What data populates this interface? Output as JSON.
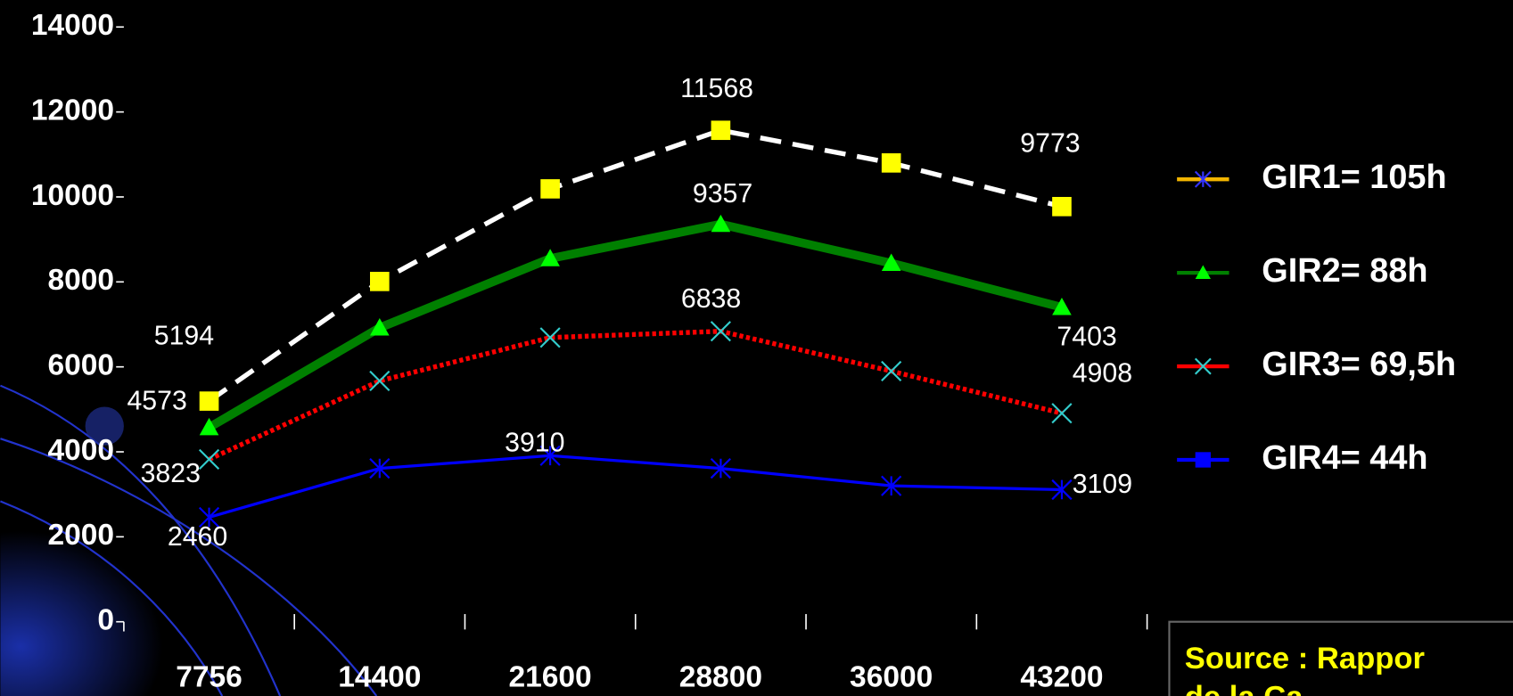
{
  "chart_data": {
    "type": "line",
    "categories": [
      "7756",
      "14400",
      "21600",
      "28800",
      "36000",
      "43200"
    ],
    "ylim": [
      0,
      14000
    ],
    "yticks": [
      0,
      2000,
      4000,
      6000,
      8000,
      10000,
      12000,
      14000
    ],
    "series": [
      {
        "name": "GIR1= 105h",
        "color": "#ffffff",
        "dash": "22 12",
        "width": 5,
        "marker": "square",
        "marker_color": "#ffff00",
        "legend_color": "#f2b400",
        "legend_marker": "star",
        "legend_marker_color": "#3333ff",
        "values": [
          5194,
          8010,
          10190,
          11568,
          10800,
          9773
        ],
        "value_labels": [
          "5194",
          null,
          null,
          "11568",
          null,
          "9773"
        ]
      },
      {
        "name": "GIR2= 88h",
        "color": "#008000",
        "dash": "none",
        "width": 9,
        "marker": "triangle",
        "marker_color": "#00ff00",
        "legend_color": "#008000",
        "legend_marker": "triangle",
        "legend_marker_color": "#00ff00",
        "values": [
          4573,
          6920,
          8550,
          9357,
          8440,
          7403
        ],
        "value_labels": [
          "4573",
          null,
          null,
          "9357",
          null,
          "7403"
        ]
      },
      {
        "name": "GIR3= 69,5h",
        "color": "#ff0000",
        "dash": "4 3",
        "width": 5,
        "marker": "x",
        "marker_color": "#33cccc",
        "legend_color": "#ff0000",
        "legend_marker": "x",
        "legend_marker_color": "#33cccc",
        "values": [
          3823,
          5670,
          6690,
          6838,
          5900,
          4908
        ],
        "value_labels": [
          "3823",
          null,
          null,
          "6838",
          null,
          "4908"
        ]
      },
      {
        "name": "GIR4= 44h",
        "color": "#0000ff",
        "dash": "none",
        "width": 3,
        "marker": "star",
        "marker_color": "#0000ff",
        "legend_color": "#0000ff",
        "legend_marker": "square",
        "legend_marker_color": "#0000ff",
        "values": [
          2460,
          3610,
          3910,
          3610,
          3200,
          3109
        ],
        "value_labels": [
          "2460",
          null,
          "3910",
          null,
          null,
          "3109"
        ]
      }
    ],
    "source": [
      "Source : Rappor",
      "de la Ca"
    ]
  }
}
